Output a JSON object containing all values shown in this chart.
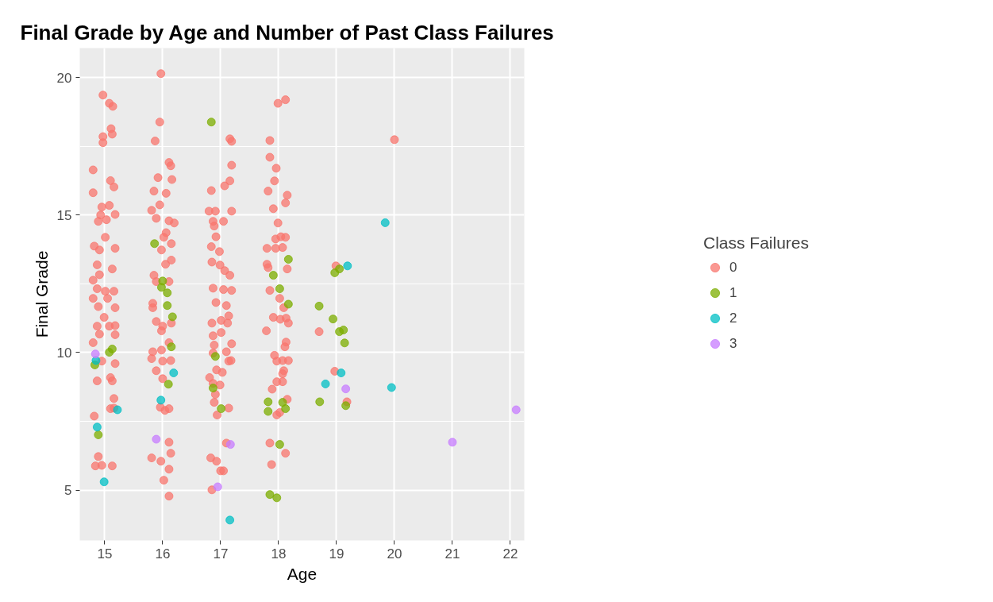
{
  "chart_data": {
    "type": "scatter",
    "title": "Final Grade by Age and Number of Past Class Failures",
    "xlabel": "Age",
    "ylabel": "Final Grade",
    "legend_title": "Class Failures",
    "legend": "right",
    "marker": "circle",
    "grid": true,
    "xlim": [
      14.57,
      22.24
    ],
    "ylim": [
      3.17,
      21.07
    ],
    "xticks": [
      15,
      16,
      17,
      18,
      19,
      20,
      21,
      22
    ],
    "yticks": [
      5,
      10,
      15,
      20
    ],
    "series": [
      {
        "name": "0",
        "color": "#f8766d",
        "x": [
          14.97,
          15.08,
          15.14,
          15.11,
          15.13,
          14.97,
          14.97,
          14.8,
          15.1,
          15.16,
          14.8,
          14.95,
          15.08,
          14.93,
          15.18,
          14.89,
          15.03,
          15.01,
          14.82,
          14.91,
          15.18,
          14.87,
          15.13,
          14.91,
          14.8,
          14.87,
          15.01,
          15.16,
          14.8,
          15.05,
          14.89,
          15.18,
          14.99,
          15.08,
          14.87,
          15.18,
          14.91,
          15.18,
          14.8,
          14.95,
          15.18,
          14.87,
          15.1,
          15.13,
          15.16,
          15.1,
          15.16,
          14.82,
          14.89,
          14.84,
          14.95,
          15.13,
          15.97,
          15.95,
          15.87,
          16.11,
          16.14,
          15.92,
          16.16,
          15.85,
          16.06,
          15.95,
          15.81,
          15.89,
          16.11,
          16.2,
          16.06,
          16.02,
          16.15,
          15.98,
          16.15,
          16.05,
          15.85,
          15.89,
          16.11,
          15.83,
          15.83,
          15.89,
          16.0,
          16.15,
          15.98,
          16.11,
          15.83,
          15.98,
          15.81,
          16.0,
          16.14,
          15.89,
          16.0,
          15.96,
          16.04,
          16.11,
          16.11,
          16.14,
          15.81,
          15.97,
          16.11,
          16.02,
          16.11,
          17.16,
          17.19,
          17.19,
          17.16,
          17.07,
          16.84,
          16.8,
          16.91,
          17.19,
          16.87,
          17.05,
          16.89,
          16.92,
          16.84,
          16.98,
          16.85,
          16.99,
          17.07,
          17.16,
          16.87,
          17.05,
          17.19,
          16.92,
          17.1,
          17.14,
          16.85,
          17.01,
          17.12,
          16.87,
          17.01,
          16.89,
          17.19,
          16.87,
          17.1,
          17.14,
          17.18,
          16.93,
          17.03,
          16.81,
          16.87,
          16.99,
          16.91,
          16.89,
          16.94,
          17.14,
          17.1,
          16.83,
          16.93,
          17.0,
          17.05,
          16.85,
          17.99,
          18.12,
          17.85,
          17.85,
          17.96,
          17.93,
          17.82,
          18.15,
          18.12,
          17.91,
          17.99,
          17.95,
          18.04,
          18.12,
          17.8,
          17.95,
          18.07,
          17.8,
          17.82,
          18.15,
          17.85,
          18.02,
          18.09,
          17.91,
          18.03,
          18.13,
          18.17,
          17.79,
          18.13,
          18.11,
          17.93,
          17.97,
          18.07,
          18.17,
          18.09,
          18.07,
          17.97,
          18.07,
          17.89,
          18.15,
          17.97,
          18.02,
          17.85,
          18.12,
          17.88,
          20.0,
          18.99,
          18.7,
          18.97,
          19.18
        ],
        "values": [
          19.36,
          19.06,
          18.95,
          18.14,
          17.94,
          17.85,
          17.63,
          16.64,
          16.25,
          16.02,
          15.81,
          15.29,
          15.35,
          15.0,
          15.02,
          14.77,
          14.83,
          14.19,
          13.87,
          13.73,
          13.79,
          13.19,
          13.04,
          12.83,
          12.63,
          12.32,
          12.23,
          12.23,
          11.97,
          11.97,
          11.67,
          11.63,
          11.28,
          10.96,
          10.96,
          10.98,
          10.67,
          10.65,
          10.36,
          9.69,
          9.6,
          8.97,
          9.09,
          8.97,
          8.33,
          7.96,
          7.98,
          7.69,
          6.22,
          5.88,
          5.9,
          5.88,
          20.14,
          18.38,
          17.69,
          16.91,
          16.79,
          16.36,
          16.29,
          15.87,
          15.79,
          15.37,
          15.17,
          14.88,
          14.79,
          14.71,
          14.36,
          14.19,
          13.96,
          13.73,
          13.36,
          13.21,
          12.81,
          12.58,
          12.58,
          11.79,
          11.63,
          11.13,
          10.96,
          11.07,
          10.79,
          10.36,
          10.03,
          10.09,
          9.78,
          9.69,
          9.71,
          9.34,
          9.05,
          8.01,
          7.9,
          7.96,
          6.74,
          6.34,
          6.17,
          6.05,
          5.76,
          5.36,
          4.78,
          17.77,
          17.68,
          16.81,
          16.24,
          16.06,
          15.89,
          15.14,
          15.14,
          15.14,
          14.77,
          14.77,
          14.6,
          14.21,
          13.85,
          13.67,
          13.29,
          13.18,
          12.98,
          12.81,
          12.34,
          12.29,
          12.26,
          11.82,
          11.71,
          11.33,
          11.07,
          11.17,
          11.07,
          10.61,
          10.73,
          10.27,
          10.32,
          9.98,
          10.03,
          9.69,
          9.71,
          9.37,
          9.28,
          9.09,
          8.88,
          8.82,
          8.48,
          8.19,
          7.73,
          7.98,
          6.71,
          6.17,
          6.05,
          5.7,
          5.7,
          5.01,
          19.06,
          19.19,
          17.71,
          17.1,
          16.7,
          16.24,
          15.87,
          15.72,
          15.44,
          15.23,
          14.71,
          14.13,
          14.21,
          14.19,
          13.79,
          13.79,
          13.82,
          13.21,
          13.09,
          13.04,
          12.26,
          11.97,
          11.63,
          11.28,
          11.21,
          11.25,
          11.07,
          10.79,
          10.38,
          10.21,
          9.9,
          9.69,
          9.71,
          9.71,
          9.34,
          9.23,
          8.94,
          8.94,
          8.67,
          8.3,
          7.73,
          7.82,
          6.71,
          6.34,
          5.93,
          17.74,
          13.15,
          10.76,
          9.32,
          8.21
        ]
      },
      {
        "name": "1",
        "color": "#7cae00",
        "x": [
          15.08,
          15.13,
          14.83,
          14.89,
          15.86,
          16.0,
          15.98,
          16.08,
          16.08,
          16.17,
          16.15,
          16.1,
          16.84,
          16.91,
          16.87,
          17.01,
          18.17,
          17.91,
          18.02,
          18.17,
          17.82,
          17.82,
          18.07,
          18.12,
          18.02,
          17.85,
          17.97,
          18.97,
          19.05,
          18.7,
          18.94,
          18.97,
          19.05,
          19.12,
          19.14,
          18.71,
          19.16
        ],
        "values": [
          10.01,
          10.13,
          9.55,
          7.01,
          13.96,
          12.6,
          12.37,
          12.17,
          11.71,
          11.3,
          10.21,
          8.85,
          18.38,
          9.86,
          8.71,
          7.96,
          13.39,
          12.81,
          12.32,
          11.76,
          8.21,
          7.86,
          8.19,
          7.96,
          6.66,
          4.84,
          4.72,
          12.9,
          13.04,
          11.69,
          11.22,
          null,
          10.76,
          10.82,
          10.35,
          8.21,
          8.07
        ]
      },
      {
        "name": "2",
        "color": "#00bfc4",
        "x": [
          14.85,
          15.22,
          14.87,
          14.99,
          16.19,
          15.97,
          17.16,
          19.84,
          19.19,
          19.08,
          18.81,
          19.95
        ],
        "values": [
          9.71,
          7.92,
          7.29,
          5.3,
          9.26,
          8.27,
          3.91,
          14.72,
          13.15,
          9.26,
          8.86,
          8.73
        ]
      },
      {
        "name": "3",
        "color": "#c77cff",
        "x": [
          14.84,
          15.89,
          17.17,
          16.95,
          19.16,
          21.0,
          22.1
        ],
        "values": [
          9.95,
          6.85,
          6.66,
          5.12,
          8.68,
          6.74,
          7.92
        ]
      }
    ]
  }
}
